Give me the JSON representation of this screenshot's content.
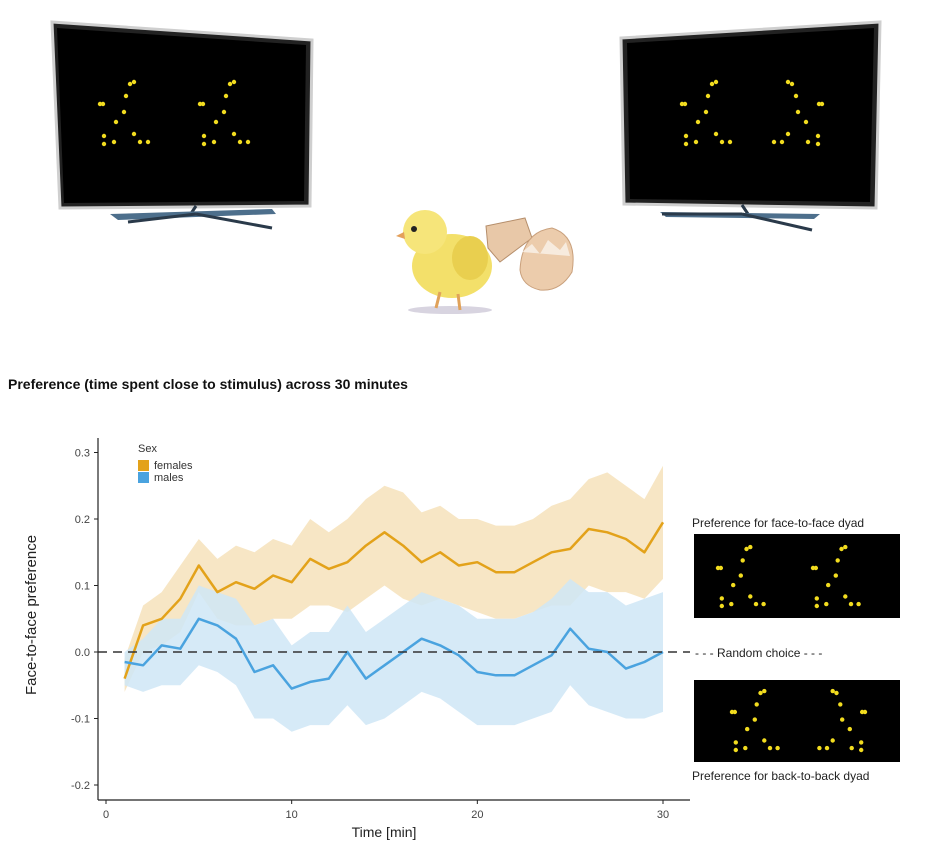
{
  "figure": {
    "title": "Preference (time spent close to stimulus) across 30 minutes"
  },
  "side_labels": {
    "face_to_face": "Preference for face-to-face dyad",
    "random": "- - - Random choice - - -",
    "back_to_back": "Preference for back-to-back dyad"
  },
  "colors": {
    "females": "#e3a21a",
    "females_band": "#f6e2bb",
    "males": "#4aa3df",
    "males_band": "#cfe6f6",
    "dots": "#f2dc1f",
    "screen": "#000000"
  },
  "chart_data": {
    "type": "line",
    "title": "",
    "xlabel": "Time [min]",
    "ylabel": "Face-to-face preference",
    "xlim": [
      0,
      31
    ],
    "ylim": [
      -0.22,
      0.33
    ],
    "xticks": [
      0,
      10,
      20,
      30
    ],
    "yticks": [
      -0.2,
      -0.1,
      0.0,
      0.1,
      0.2,
      0.3
    ],
    "ytick_labels": [
      "-0.2",
      "-0.1",
      "0.0",
      "0.1",
      "0.2",
      "0.3"
    ],
    "grid": false,
    "legend": {
      "title": "Sex",
      "position": "top-left"
    },
    "reference_line": {
      "y": 0.0,
      "style": "dashed"
    },
    "x": [
      1,
      2,
      3,
      4,
      5,
      6,
      7,
      8,
      9,
      10,
      11,
      12,
      13,
      14,
      15,
      16,
      17,
      18,
      19,
      20,
      21,
      22,
      23,
      24,
      25,
      26,
      27,
      28,
      29,
      30
    ],
    "series": [
      {
        "name": "females",
        "values": [
          -0.04,
          0.04,
          0.05,
          0.08,
          0.13,
          0.09,
          0.105,
          0.095,
          0.115,
          0.105,
          0.14,
          0.125,
          0.135,
          0.16,
          0.18,
          0.16,
          0.135,
          0.15,
          0.13,
          0.135,
          0.12,
          0.12,
          0.135,
          0.15,
          0.155,
          0.185,
          0.18,
          0.17,
          0.15,
          0.195
        ],
        "lower": [
          -0.06,
          0.0,
          0.01,
          0.03,
          0.09,
          0.05,
          0.04,
          0.04,
          0.05,
          0.05,
          0.07,
          0.07,
          0.06,
          0.08,
          0.1,
          0.08,
          0.07,
          0.08,
          0.07,
          0.06,
          0.05,
          0.05,
          0.06,
          0.07,
          0.07,
          0.1,
          0.09,
          0.09,
          0.08,
          0.11
        ],
        "upper": [
          -0.01,
          0.07,
          0.09,
          0.13,
          0.17,
          0.14,
          0.16,
          0.15,
          0.17,
          0.16,
          0.2,
          0.18,
          0.2,
          0.23,
          0.25,
          0.24,
          0.21,
          0.22,
          0.2,
          0.2,
          0.19,
          0.19,
          0.2,
          0.22,
          0.23,
          0.26,
          0.27,
          0.25,
          0.23,
          0.28
        ]
      },
      {
        "name": "males",
        "values": [
          -0.015,
          -0.02,
          0.01,
          0.005,
          0.05,
          0.04,
          0.02,
          -0.03,
          -0.02,
          -0.055,
          -0.045,
          -0.04,
          0.0,
          -0.04,
          -0.02,
          0.0,
          0.02,
          0.01,
          -0.005,
          -0.03,
          -0.035,
          -0.035,
          -0.02,
          -0.005,
          0.035,
          0.005,
          0.0,
          -0.025,
          -0.015,
          0.0
        ],
        "lower": [
          -0.05,
          -0.06,
          -0.05,
          -0.05,
          -0.02,
          -0.03,
          -0.05,
          -0.1,
          -0.1,
          -0.12,
          -0.11,
          -0.11,
          -0.08,
          -0.11,
          -0.1,
          -0.08,
          -0.06,
          -0.07,
          -0.09,
          -0.11,
          -0.11,
          -0.11,
          -0.1,
          -0.09,
          -0.05,
          -0.08,
          -0.09,
          -0.1,
          -0.1,
          -0.09
        ],
        "upper": [
          0.0,
          0.02,
          0.05,
          0.05,
          0.1,
          0.09,
          0.08,
          0.04,
          0.05,
          0.01,
          0.03,
          0.03,
          0.07,
          0.03,
          0.05,
          0.07,
          0.09,
          0.08,
          0.07,
          0.05,
          0.05,
          0.05,
          0.06,
          0.08,
          0.11,
          0.09,
          0.09,
          0.07,
          0.08,
          0.09
        ]
      }
    ]
  }
}
